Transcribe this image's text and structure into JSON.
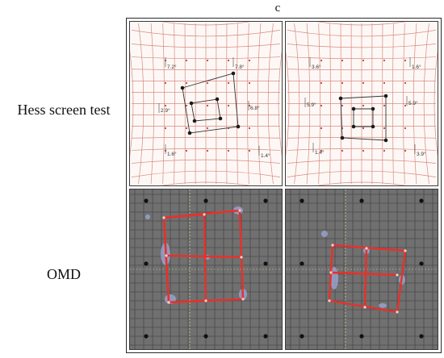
{
  "figure": {
    "panel_letter": "c",
    "row_labels": {
      "hess": "Hess screen test",
      "omd": "OMD"
    },
    "hess_left": {
      "labels": [
        "7.2°",
        "7.8°",
        "2.9°",
        "6.8°",
        "1.6°",
        "1.4°"
      ]
    },
    "hess_right": {
      "labels": [
        "3.6°",
        "1.6°",
        "5.9°",
        "5.9°",
        "1.4°",
        "3.9°"
      ]
    },
    "colors": {
      "hess_grid": "#d88a80",
      "hess_background": "#fdf8f6",
      "omd_background": "#707070",
      "omd_grid": "#4a4a4a",
      "trace": "#e8302a",
      "dots": "#1a1a1a",
      "blobs": "#9ea8d8"
    }
  }
}
